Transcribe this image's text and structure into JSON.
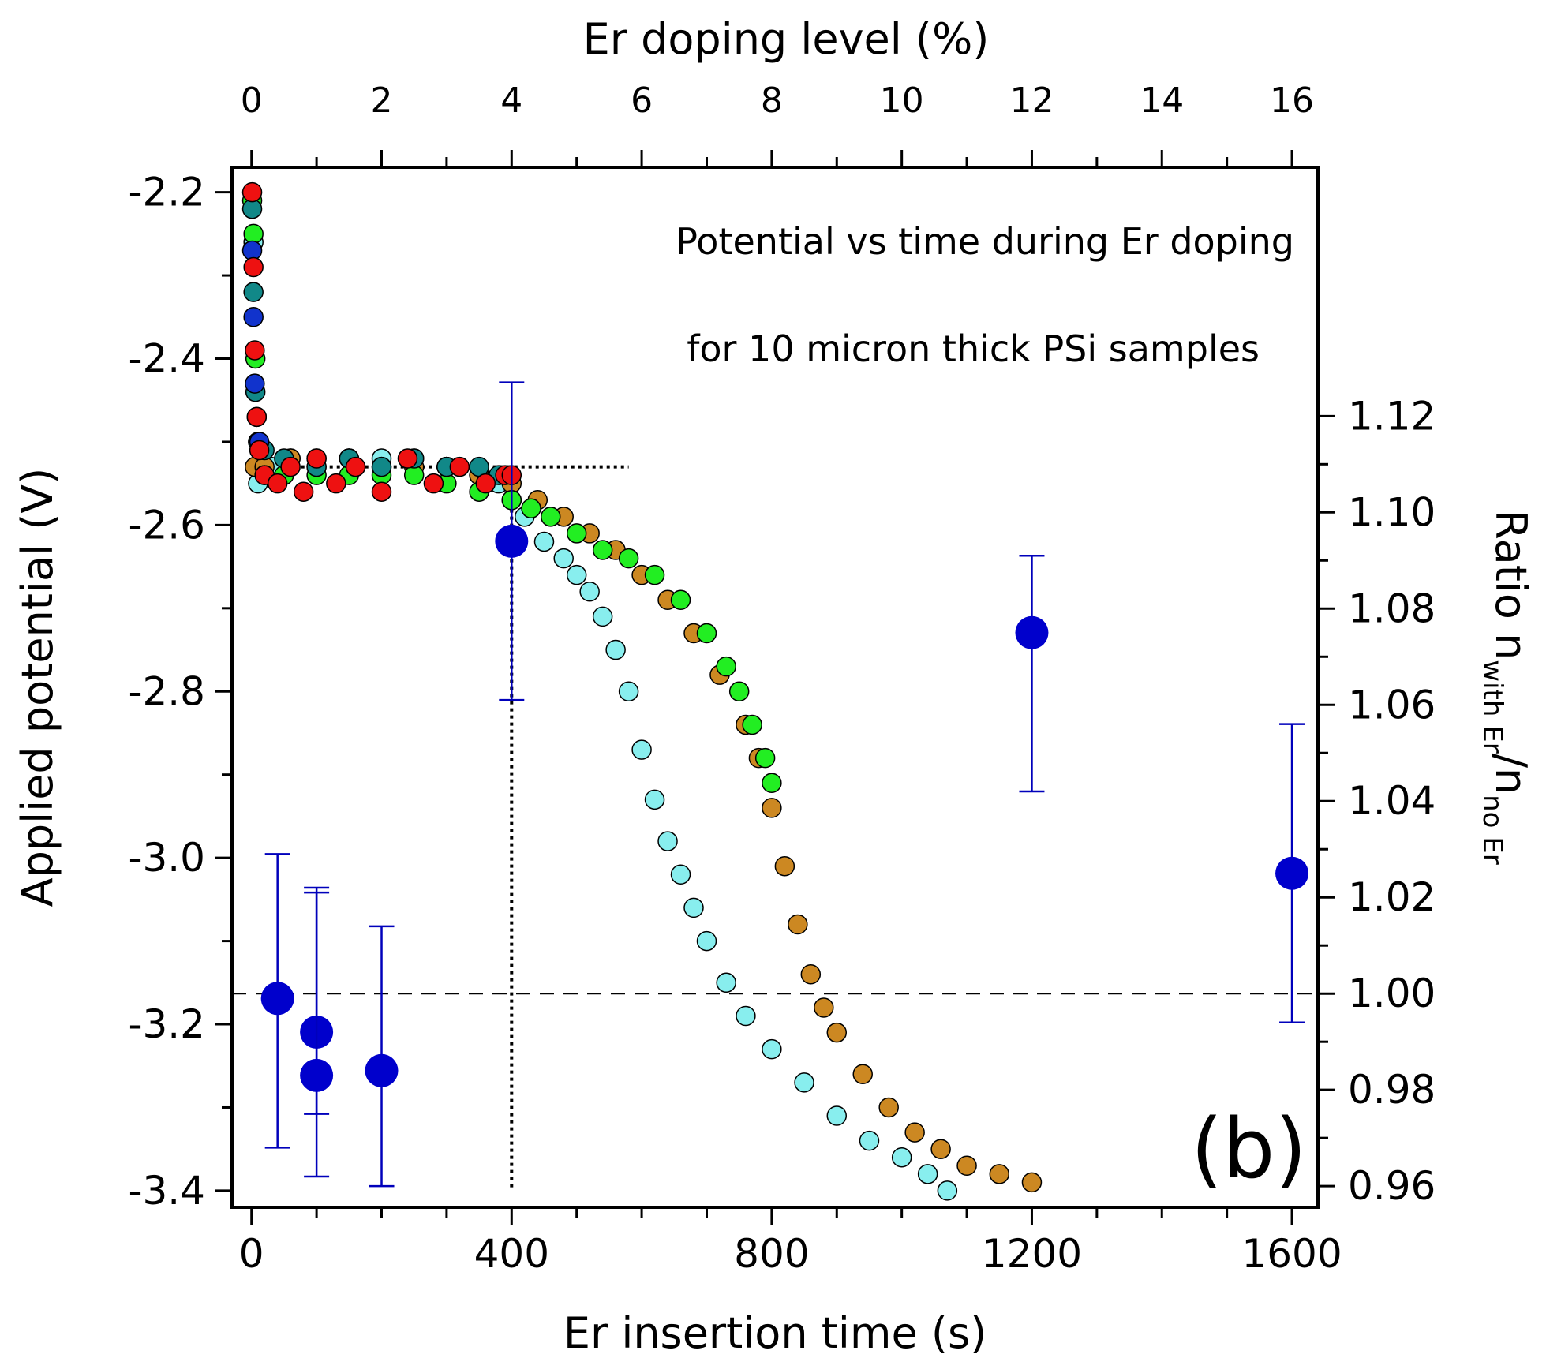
{
  "chart_data": {
    "type": "scatter",
    "title": "",
    "annotation_lines": [
      "Potential vs time during Er doping",
      "for 10 micron thick PSi samples"
    ],
    "panel_label": "(b)",
    "x_bottom": {
      "label": "Er insertion time (s)",
      "range": [
        -30,
        1640
      ],
      "ticks": [
        0,
        400,
        800,
        1200,
        1600
      ],
      "tick_labels": [
        "0",
        "400",
        "800",
        "1200",
        "1600"
      ],
      "minor_step": 100
    },
    "x_top": {
      "label": "Er doping level (%)",
      "range": [
        -0.3,
        16.4
      ],
      "ticks": [
        0,
        2,
        4,
        6,
        8,
        10,
        12,
        14,
        16
      ],
      "tick_labels": [
        "0",
        "2",
        "4",
        "6",
        "8",
        "10",
        "12",
        "14",
        "16"
      ],
      "minor_step": 1
    },
    "y_left": {
      "label": "Applied potential (V)",
      "range": [
        -3.42,
        -2.17
      ],
      "ticks": [
        -2.2,
        -2.4,
        -2.6,
        -2.8,
        -3.0,
        -3.2,
        -3.4
      ],
      "tick_labels": [
        "-2.2",
        "-2.4",
        "-2.6",
        "-2.8",
        "-3.0",
        "-3.2",
        "-3.4"
      ],
      "minor_step": 0.1
    },
    "y_right": {
      "label_main": "Ratio n",
      "label_sub1": "with Er",
      "label_mid": "/n",
      "label_sub2": "no Er",
      "range": [
        0.9556,
        1.1717
      ],
      "ticks": [
        0.96,
        0.98,
        1.0,
        1.02,
        1.04,
        1.06,
        1.08,
        1.1,
        1.12
      ],
      "tick_labels": [
        "0.96",
        "0.98",
        "1.00",
        "1.02",
        "1.04",
        "1.06",
        "1.08",
        "1.10",
        "1.12"
      ],
      "minor_step": 0.01
    },
    "reference_lines": {
      "ratio_one": 1.0,
      "plateau_potential": -2.53,
      "plateau_end_time": 580,
      "cutoff_time": 400
    },
    "series": [
      {
        "axis": "left",
        "fill": "#88eeee",
        "x": [
          3,
          10,
          30,
          60,
          100,
          150,
          200,
          250,
          300,
          350,
          380,
          400,
          420,
          450,
          480,
          500,
          520,
          540,
          560,
          580,
          600,
          620,
          640,
          660,
          680,
          700,
          730,
          760,
          800,
          850,
          900,
          950,
          1000,
          1040,
          1070
        ],
        "y": [
          -2.26,
          -2.55,
          -2.53,
          -2.52,
          -2.52,
          -2.52,
          -2.52,
          -2.52,
          -2.53,
          -2.54,
          -2.55,
          -2.57,
          -2.59,
          -2.62,
          -2.64,
          -2.66,
          -2.68,
          -2.71,
          -2.75,
          -2.8,
          -2.87,
          -2.93,
          -2.98,
          -3.02,
          -3.06,
          -3.1,
          -3.15,
          -3.19,
          -3.23,
          -3.27,
          -3.31,
          -3.34,
          -3.36,
          -3.38,
          -3.4
        ]
      },
      {
        "axis": "left",
        "fill": "#cc8822",
        "x": [
          5,
          20,
          60,
          100,
          150,
          200,
          250,
          300,
          350,
          400,
          440,
          480,
          520,
          560,
          600,
          640,
          680,
          720,
          760,
          780,
          800,
          820,
          840,
          860,
          880,
          900,
          940,
          980,
          1020,
          1060,
          1100,
          1150,
          1200
        ],
        "y": [
          -2.53,
          -2.53,
          -2.52,
          -2.53,
          -2.52,
          -2.53,
          -2.53,
          -2.53,
          -2.54,
          -2.55,
          -2.57,
          -2.59,
          -2.61,
          -2.63,
          -2.66,
          -2.69,
          -2.73,
          -2.78,
          -2.84,
          -2.88,
          -2.94,
          -3.01,
          -3.08,
          -3.14,
          -3.18,
          -3.21,
          -3.26,
          -3.3,
          -3.33,
          -3.35,
          -3.37,
          -3.38,
          -3.39
        ]
      },
      {
        "axis": "left",
        "fill": "#22ee22",
        "x": [
          1,
          3,
          6,
          10,
          20,
          50,
          100,
          150,
          200,
          250,
          300,
          350,
          400,
          430,
          460,
          500,
          540,
          580,
          620,
          660,
          700,
          730,
          750,
          770,
          790,
          800
        ],
        "y": [
          -2.21,
          -2.25,
          -2.4,
          -2.5,
          -2.54,
          -2.54,
          -2.54,
          -2.54,
          -2.54,
          -2.54,
          -2.55,
          -2.56,
          -2.57,
          -2.58,
          -2.59,
          -2.61,
          -2.63,
          -2.64,
          -2.66,
          -2.69,
          -2.73,
          -2.77,
          -2.8,
          -2.84,
          -2.88,
          -2.91
        ]
      },
      {
        "axis": "left",
        "fill": "#118888",
        "x": [
          1,
          3,
          6,
          10,
          20,
          50,
          100,
          150,
          200,
          250,
          300,
          350,
          380
        ],
        "y": [
          -2.22,
          -2.32,
          -2.44,
          -2.5,
          -2.51,
          -2.52,
          -2.53,
          -2.52,
          -2.53,
          -2.52,
          -2.53,
          -2.53,
          -2.54
        ]
      },
      {
        "axis": "left",
        "fill": "#1133cc",
        "x": [
          1,
          3,
          5,
          8,
          12
        ],
        "y": [
          -2.27,
          -2.35,
          -2.43,
          -2.47,
          -2.5
        ]
      },
      {
        "axis": "left",
        "fill": "#ee1111",
        "x": [
          1,
          3,
          5,
          8,
          12,
          20,
          40,
          60,
          80,
          100,
          130,
          160,
          200,
          240,
          280,
          320,
          360,
          390,
          400
        ],
        "y": [
          -2.2,
          -2.29,
          -2.39,
          -2.47,
          -2.51,
          -2.54,
          -2.55,
          -2.53,
          -2.56,
          -2.52,
          -2.55,
          -2.53,
          -2.56,
          -2.52,
          -2.55,
          -2.53,
          -2.55,
          -2.54,
          -2.54
        ]
      },
      {
        "axis": "right",
        "fill": "#0000cc",
        "x": [
          40,
          100,
          100,
          200,
          400,
          1200,
          1600
        ],
        "y": [
          0.999,
          0.992,
          0.983,
          0.984,
          1.094,
          1.075,
          1.025
        ],
        "err_low": [
          0.031,
          0.017,
          0.021,
          0.024,
          0.033,
          0.033,
          0.031
        ],
        "err_high": [
          0.03,
          0.03,
          0.038,
          0.03,
          0.033,
          0.016,
          0.031
        ]
      }
    ]
  }
}
